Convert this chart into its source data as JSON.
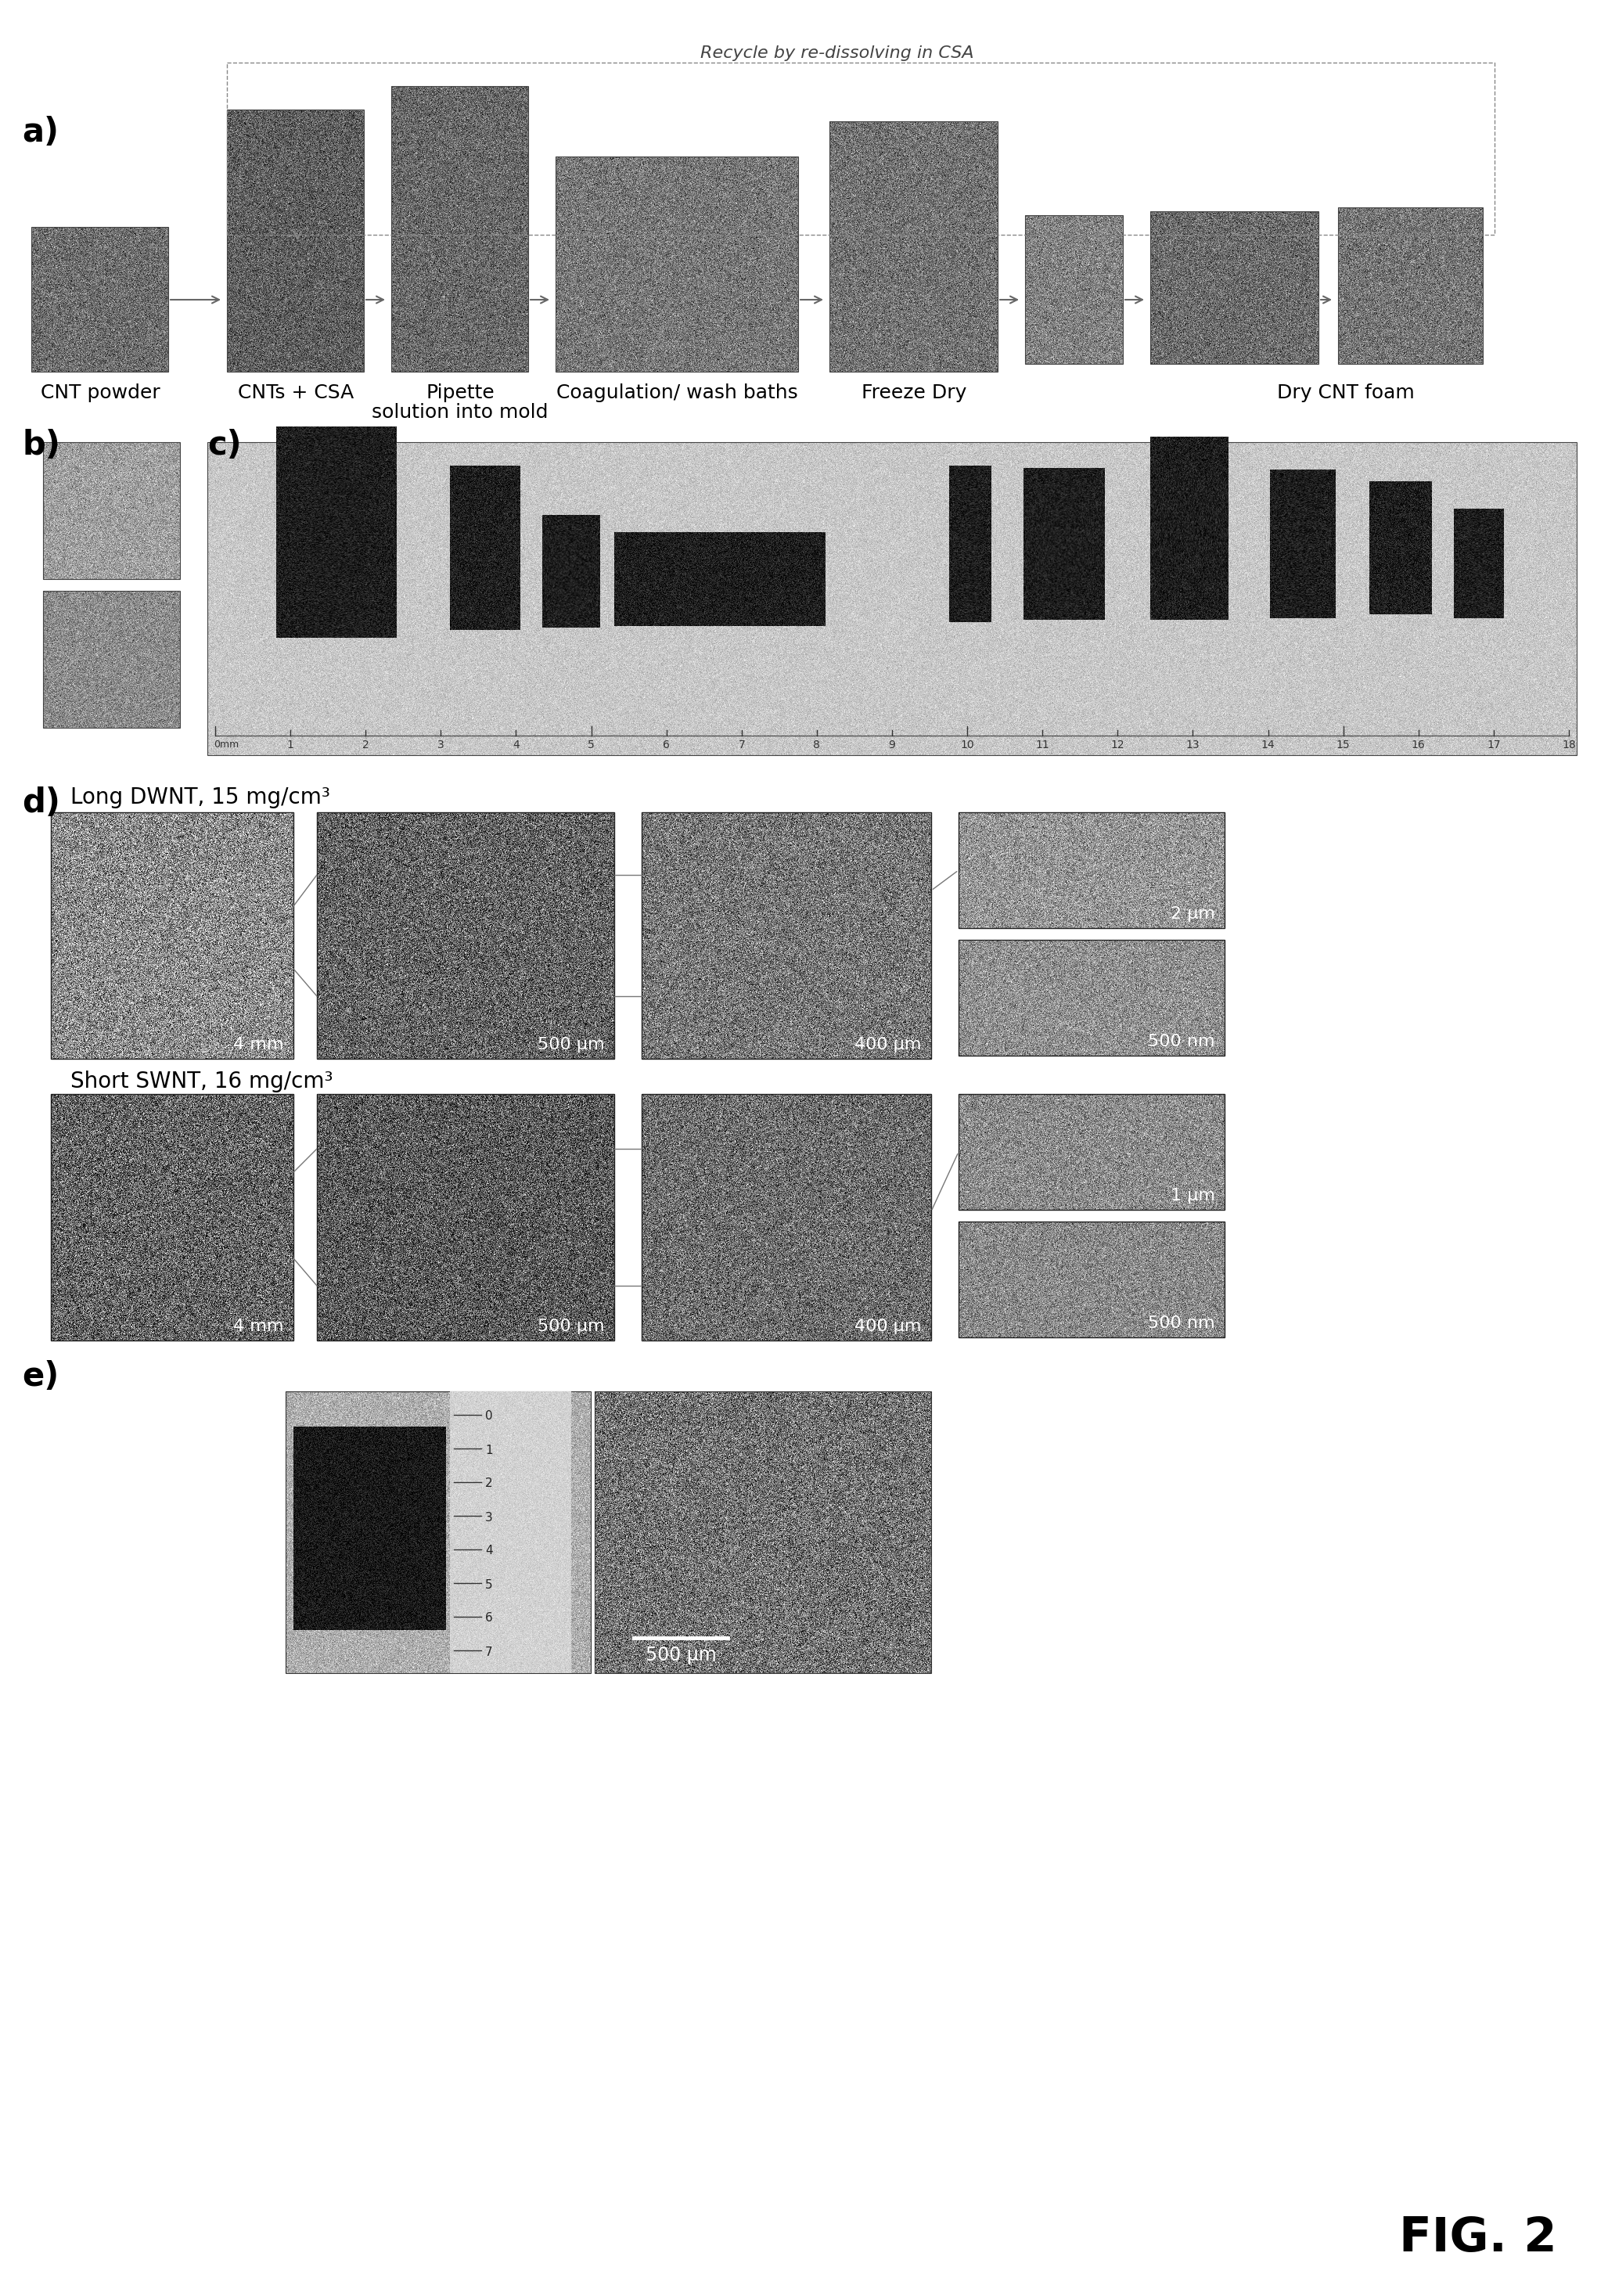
{
  "fig_label": "FIG. 2",
  "panel_a_label": "a)",
  "panel_b_label": "b)",
  "panel_c_label": "c)",
  "panel_d_label": "d)",
  "panel_e_label": "e)",
  "recycle_text": "Recycle by re-dissolving in CSA",
  "panel_a_step_labels": [
    "CNT powder",
    "CNTs + CSA",
    "Pipette\nsolution into mold",
    "Coagulation/ wash baths",
    "Freeze Dry",
    "Dry CNT foam"
  ],
  "panel_d_top_label": "Long DWNT, 15 mg/cm³",
  "panel_d_bottom_label": "Short SWNT, 16 mg/cm³",
  "scale_bar_e": "500 μm",
  "bg_color": "#ffffff",
  "text_color": "#000000",
  "label_fontsize": 30,
  "step_fontsize": 18,
  "scalebar_fontsize": 16,
  "fig2_fontsize": 44,
  "title_fontsize": 16
}
